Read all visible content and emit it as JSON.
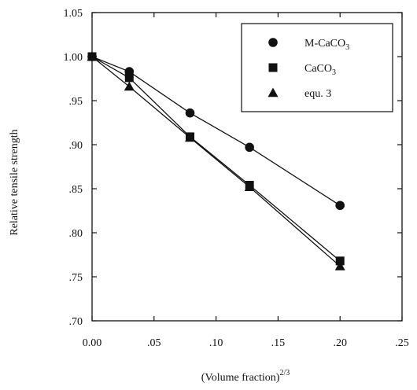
{
  "chart_data": {
    "type": "line",
    "xlabel": "(Volume fraction)",
    "xlabel_superscript": "2/3",
    "ylabel": "Relative tensile strength",
    "xlim": [
      0.0,
      0.25
    ],
    "ylim": [
      0.7,
      1.05
    ],
    "x_ticks": [
      0.0,
      0.05,
      0.1,
      0.15,
      0.2,
      0.25
    ],
    "x_tick_labels": [
      "0.00",
      ".05",
      ".10",
      ".15",
      ".20",
      ".25"
    ],
    "y_ticks": [
      0.7,
      0.75,
      0.8,
      0.85,
      0.9,
      0.95,
      1.0,
      1.05
    ],
    "y_tick_labels": [
      ".70",
      ".75",
      ".80",
      ".85",
      ".90",
      ".95",
      "1.00",
      "1.05"
    ],
    "grid": false,
    "legend_position": "top-right",
    "series": [
      {
        "name": "M-CaCO",
        "name_subscript": "3",
        "marker": "circle",
        "x": [
          0.0,
          0.03,
          0.079,
          0.127,
          0.2
        ],
        "y": [
          1.0,
          0.983,
          0.936,
          0.897,
          0.831
        ]
      },
      {
        "name": "CaCO",
        "name_subscript": "3",
        "marker": "square",
        "x": [
          0.0,
          0.03,
          0.079,
          0.127,
          0.2
        ],
        "y": [
          1.0,
          0.976,
          0.909,
          0.854,
          0.768
        ]
      },
      {
        "name": "equ. 3",
        "name_subscript": "",
        "marker": "triangle",
        "x": [
          0.0,
          0.03,
          0.079,
          0.127,
          0.2
        ],
        "y": [
          1.0,
          0.966,
          0.908,
          0.852,
          0.762
        ]
      }
    ]
  }
}
